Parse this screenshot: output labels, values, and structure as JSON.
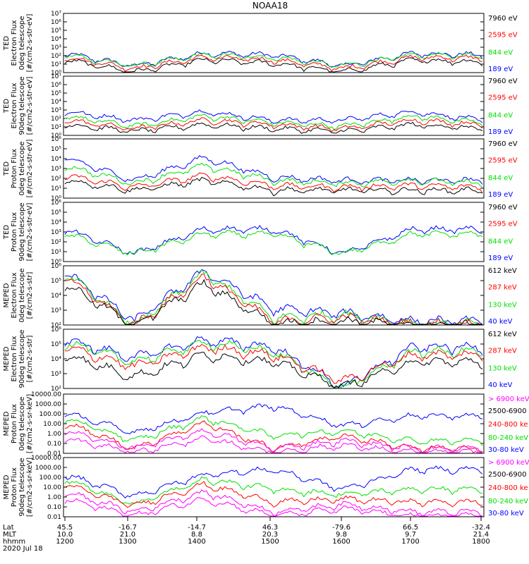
{
  "title": "NOAA18",
  "colors": {
    "blue": "#0000ff",
    "red": "#ff0000",
    "green": "#00e000",
    "black": "#000000",
    "magenta": "#ff00ff"
  },
  "panels": [
    {
      "ylabel": [
        "TED",
        "Electron Flux",
        "0deg telescope",
        "[#/cm2-s-str-eV]"
      ],
      "yticks": [
        "10⁰",
        "10¹",
        "10²",
        "10³",
        "10⁴",
        "10⁵",
        "10⁶",
        "10⁷"
      ],
      "legend": [
        {
          "text": "7960 eV",
          "color": "black"
        },
        {
          "text": "2595 eV",
          "color": "red"
        },
        {
          "text": "844 eV",
          "color": "green"
        },
        {
          "text": "189 eV",
          "color": "blue"
        }
      ]
    },
    {
      "ylabel": [
        "TED",
        "Electron Flux",
        "90deg telescope",
        "[#/cm2-s-str-eV]"
      ],
      "yticks": [
        "10⁰",
        "10¹",
        "10²",
        "10³",
        "10⁴",
        "10⁵",
        "10⁶",
        "10⁷"
      ],
      "legend": [
        {
          "text": "7960 eV",
          "color": "black"
        },
        {
          "text": "2595 eV",
          "color": "red"
        },
        {
          "text": "844 eV",
          "color": "green"
        },
        {
          "text": "189 eV",
          "color": "blue"
        }
      ]
    },
    {
      "ylabel": [
        "TED",
        "Proton Flux",
        "0deg telescope",
        "[#/cm2-s-str-eV]"
      ],
      "yticks": [
        "10⁰",
        "10¹",
        "10²",
        "10³",
        "10⁴",
        "10⁵",
        "10⁶"
      ],
      "legend": [
        {
          "text": "7960 eV",
          "color": "black"
        },
        {
          "text": "2595 eV",
          "color": "red"
        },
        {
          "text": "844 eV",
          "color": "green"
        },
        {
          "text": "189 eV",
          "color": "blue"
        }
      ]
    },
    {
      "ylabel": [
        "TED",
        "Proton Flux",
        "90deg telescope",
        "[#/cm2-s-str-eV]"
      ],
      "yticks": [
        "10⁰",
        "10¹",
        "10²",
        "10³",
        "10⁴",
        "10⁵",
        "10⁶"
      ],
      "legend": [
        {
          "text": "7960 eV",
          "color": "black"
        },
        {
          "text": "2595 eV",
          "color": "red"
        },
        {
          "text": "844 eV",
          "color": "green"
        },
        {
          "text": "189 eV",
          "color": "blue"
        }
      ]
    },
    {
      "ylabel": [
        "MEPED",
        "Electron Flux",
        "0deg telescope",
        "[#/cm2-s-str]"
      ],
      "yticks": [
        "10²",
        "10³",
        "10⁴",
        "10⁵",
        "10⁶"
      ],
      "legend": [
        {
          "text": "612 keV",
          "color": "black"
        },
        {
          "text": "287 keV",
          "color": "red"
        },
        {
          "text": "130 keV",
          "color": "green"
        },
        {
          "text": "40 keV",
          "color": "blue"
        }
      ]
    },
    {
      "ylabel": [
        "MEPED",
        "Electron Flux",
        "90deg telescope",
        "[#/cm2-s-str]"
      ],
      "yticks": [
        "10²",
        "10³",
        "10⁴",
        "10⁵",
        "10⁶"
      ],
      "legend": [
        {
          "text": "612 keV",
          "color": "black"
        },
        {
          "text": "287 keV",
          "color": "red"
        },
        {
          "text": "130 keV",
          "color": "green"
        },
        {
          "text": "40 keV",
          "color": "blue"
        }
      ]
    },
    {
      "ylabel": [
        "MEPED",
        "Proton Flux",
        "0deg telescope",
        "[#/cm2-s-sr-keV]"
      ],
      "yticks": [
        "0.01",
        "0.10",
        "1.00",
        "10.00",
        "100.00",
        "1000.00",
        "10000.00"
      ],
      "legend": [
        {
          "text": "> 6900 keV",
          "color": "magenta"
        },
        {
          "text": "2500-6900",
          "color": "black"
        },
        {
          "text": "240-800 ke",
          "color": "red"
        },
        {
          "text": "80-240 keV",
          "color": "green"
        },
        {
          "text": "30-80 keV",
          "color": "blue"
        }
      ]
    },
    {
      "ylabel": [
        "MEPED",
        "Proton Flux",
        "90deg telescope",
        "[#/cm2-s-sr-keV]"
      ],
      "yticks": [
        "0.01",
        "0.10",
        "1.00",
        "10.00",
        "100.00",
        "1000.00",
        "10000.00"
      ],
      "legend": [
        {
          "text": "> 6900 keV",
          "color": "magenta"
        },
        {
          "text": "2500-6900",
          "color": "black"
        },
        {
          "text": "240-800 ke",
          "color": "red"
        },
        {
          "text": "80-240 keV",
          "color": "green"
        },
        {
          "text": "30-80 keV",
          "color": "blue"
        }
      ]
    }
  ],
  "xaxis": {
    "row_labels": [
      "Lat",
      "MLT",
      "hhmm",
      "2020 Jul 18"
    ],
    "ticks": [
      {
        "lat": "45.5",
        "mlt": "10.0",
        "hhmm": "1200"
      },
      {
        "lat": "-16.7",
        "mlt": "21.0",
        "hhmm": "1300"
      },
      {
        "lat": "-14.7",
        "mlt": "8.8",
        "hhmm": "1400"
      },
      {
        "lat": "46.3",
        "mlt": "20.3",
        "hhmm": "1500"
      },
      {
        "lat": "-79.6",
        "mlt": "9.8",
        "hhmm": "1600"
      },
      {
        "lat": "66.5",
        "mlt": "9.7",
        "hhmm": "1700"
      },
      {
        "lat": "-32.4",
        "mlt": "21.4",
        "hhmm": "1800"
      }
    ]
  },
  "chart_data": {
    "type": "line",
    "title": "NOAA18",
    "x": [
      "1200",
      "1300",
      "1400",
      "1500",
      "1600",
      "1700",
      "1800"
    ],
    "xlabel": "hhmm",
    "yscale": "log",
    "panels": [
      {
        "name": "TED Electron Flux 0deg",
        "ylim": [
          1,
          10000000
        ],
        "series": [
          {
            "name": "189 eV",
            "values": [
              300,
              10,
              300,
              200,
              10,
              300,
              200
            ]
          },
          {
            "name": "844 eV",
            "values": [
              200,
              10,
              200,
              100,
              10,
              200,
              150
            ]
          },
          {
            "name": "2595 eV",
            "values": [
              100,
              5,
              100,
              50,
              5,
              100,
              80
            ]
          },
          {
            "name": "7960 eV",
            "values": [
              50,
              2,
              50,
              20,
              2,
              50,
              30
            ]
          }
        ]
      },
      {
        "name": "TED Electron Flux 90deg",
        "ylim": [
          1,
          10000000
        ],
        "series": [
          {
            "name": "189 eV",
            "values": [
              1000,
              100,
              1000,
              100,
              100,
              1000,
              100
            ]
          },
          {
            "name": "844 eV",
            "values": [
              300,
              20,
              300,
              50,
              20,
              300,
              50
            ]
          },
          {
            "name": "2595 eV",
            "values": [
              100,
              10,
              100,
              30,
              10,
              100,
              30
            ]
          },
          {
            "name": "7960 eV",
            "values": [
              30,
              5,
              30,
              10,
              5,
              30,
              10
            ]
          }
        ]
      },
      {
        "name": "TED Proton Flux 0deg",
        "ylim": [
          1,
          1000000
        ],
        "series": [
          {
            "name": "189 eV",
            "values": [
              20000,
              100,
              20000,
              200,
              100,
              100,
              100
            ]
          },
          {
            "name": "844 eV",
            "values": [
              3000,
              50,
              3000,
              100,
              50,
              100,
              50
            ]
          },
          {
            "name": "2595 eV",
            "values": [
              300,
              20,
              300,
              30,
              20,
              30,
              20
            ]
          },
          {
            "name": "7960 eV",
            "values": [
              100,
              10,
              100,
              10,
              10,
              10,
              10
            ]
          }
        ]
      },
      {
        "name": "TED Proton Flux 90deg",
        "ylim": [
          1,
          1000000
        ],
        "series": [
          {
            "name": "189 eV",
            "values": [
              3000,
              10,
              3000,
              3000,
              10,
              3000,
              3000
            ]
          },
          {
            "name": "844 eV",
            "values": [
              1000,
              10,
              1000,
              1000,
              10,
              1000,
              1000
            ]
          }
        ]
      },
      {
        "name": "MEPED Electron Flux 0deg",
        "ylim": [
          100,
          1000000
        ],
        "series": [
          {
            "name": "40 keV",
            "values": [
              700000,
              300,
              700000,
              2000,
              1000,
              300,
              300
            ]
          },
          {
            "name": "130 keV",
            "values": [
              500000,
              150,
              500000,
              500,
              800,
              200,
              200
            ]
          },
          {
            "name": "287 keV",
            "values": [
              300000,
              150,
              300000,
              300,
              500,
              200,
              200
            ]
          },
          {
            "name": "612 keV",
            "values": [
              100000,
              150,
              100000,
              200,
              300,
              150,
              150
            ]
          }
        ]
      },
      {
        "name": "MEPED Electron Flux 90deg",
        "ylim": [
          100,
          1000000
        ],
        "series": [
          {
            "name": "40 keV",
            "values": [
              300000,
              20000,
              300000,
              100000,
              200,
              100000,
              100000
            ]
          },
          {
            "name": "130 keV",
            "values": [
              200000,
              10000,
              200000,
              50000,
              150,
              50000,
              50000
            ]
          },
          {
            "name": "287 keV",
            "values": [
              100000,
              5000,
              100000,
              30000,
              500,
              30000,
              30000
            ]
          },
          {
            "name": "612 keV",
            "values": [
              30000,
              1000,
              30000,
              10000,
              200,
              10000,
              10000
            ]
          }
        ]
      },
      {
        "name": "MEPED Proton Flux 0deg",
        "ylim": [
          0.01,
          10000
        ],
        "series": [
          {
            "name": "30-80 keV",
            "values": [
              200,
              2,
              200,
              1000,
              10,
              100,
              100
            ]
          },
          {
            "name": "80-240 keV",
            "values": [
              60,
              0.3,
              60,
              1,
              3,
              0.3,
              0.3
            ]
          },
          {
            "name": "240-800 keV",
            "values": [
              20,
              0.05,
              20,
              0.05,
              1,
              0.05,
              0.05
            ]
          },
          {
            "name": "2500-6900 keV",
            "values": [
              3,
              0.05,
              3,
              0.05,
              0.3,
              0.05,
              0.05
            ]
          },
          {
            "name": "> 6900 keV",
            "values": [
              0.5,
              0.02,
              0.5,
              0.02,
              0.1,
              0.02,
              0.02
            ]
          }
        ]
      },
      {
        "name": "MEPED Proton Flux 90deg",
        "ylim": [
          0.01,
          10000
        ],
        "series": [
          {
            "name": "30-80 keV",
            "values": [
              300,
              2,
              300,
              1000,
              10,
              1000,
              1000
            ]
          },
          {
            "name": "80-240 keV",
            "values": [
              100,
              0.3,
              100,
              10,
              3,
              10,
              10
            ]
          },
          {
            "name": "240-800 keV",
            "values": [
              30,
              0.2,
              30,
              0.5,
              1,
              0.5,
              0.5
            ]
          },
          {
            "name": "2500-6900 keV",
            "values": [
              5,
              0.05,
              5,
              0.05,
              0.3,
              0.05,
              0.05
            ]
          },
          {
            "name": "> 6900 keV",
            "values": [
              1,
              0.02,
              1,
              0.02,
              0.1,
              0.02,
              0.02
            ]
          }
        ]
      }
    ]
  }
}
